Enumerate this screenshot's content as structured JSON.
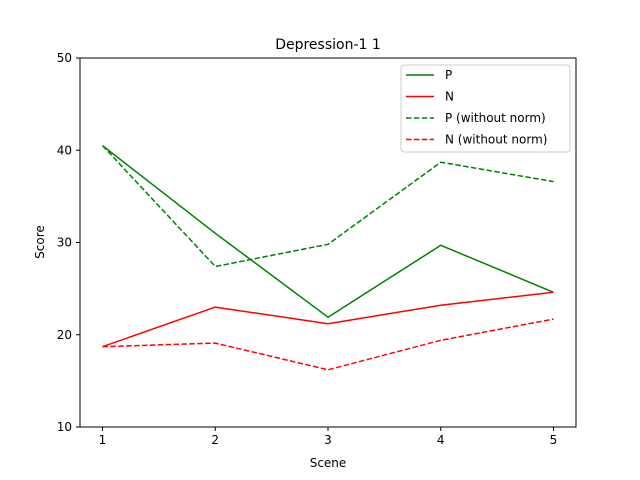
{
  "chart_data": {
    "type": "line",
    "title": "Depression-1 1",
    "xlabel": "Scene",
    "ylabel": "Score",
    "x": [
      1,
      2,
      3,
      4,
      5
    ],
    "xticks": [
      "1",
      "2",
      "3",
      "4",
      "5"
    ],
    "ylim": [
      10,
      50
    ],
    "yticks": [
      "10",
      "20",
      "30",
      "40",
      "50"
    ],
    "grid": false,
    "legend_position": "top-right",
    "series": [
      {
        "name": "P",
        "values": [
          40.5,
          31.0,
          21.9,
          29.7,
          24.6
        ],
        "color": "#008000",
        "style": "solid"
      },
      {
        "name": "N",
        "values": [
          18.7,
          23.0,
          21.2,
          23.2,
          24.6
        ],
        "color": "#ff0000",
        "style": "solid"
      },
      {
        "name": "P (without norm)",
        "values": [
          40.5,
          27.4,
          29.8,
          38.7,
          36.6
        ],
        "color": "#008000",
        "style": "dashed"
      },
      {
        "name": "N (without norm)",
        "values": [
          18.7,
          19.1,
          16.2,
          19.4,
          21.7
        ],
        "color": "#ff0000",
        "style": "dashed"
      }
    ]
  }
}
